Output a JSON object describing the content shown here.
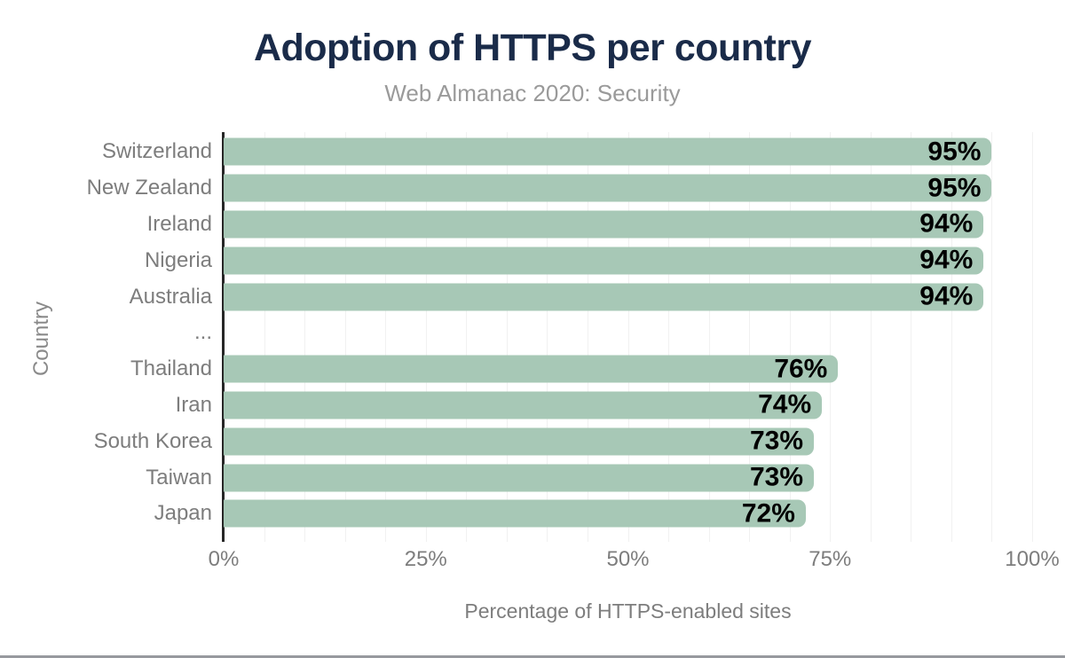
{
  "chart_data": {
    "type": "bar",
    "orientation": "horizontal",
    "title": "Adoption of HTTPS per country",
    "subtitle": "Web Almanac 2020: Security",
    "xlabel": "Percentage of HTTPS-enabled sites",
    "ylabel": "Country",
    "categories": [
      "Switzerland",
      "New Zealand",
      "Ireland",
      "Nigeria",
      "Australia",
      "...",
      "Thailand",
      "Iran",
      "South Korea",
      "Taiwan",
      "Japan"
    ],
    "values": [
      95,
      95,
      94,
      94,
      94,
      null,
      76,
      74,
      73,
      73,
      72
    ],
    "bar_labels": [
      "95%",
      "95%",
      "94%",
      "94%",
      "94%",
      "",
      "76%",
      "74%",
      "73%",
      "73%",
      "72%"
    ],
    "xlim": [
      0,
      100
    ],
    "x_ticks": [
      {
        "value": 0,
        "label": "0%"
      },
      {
        "value": 25,
        "label": "25%"
      },
      {
        "value": 50,
        "label": "50%"
      },
      {
        "value": 75,
        "label": "75%"
      },
      {
        "value": 100,
        "label": "100%"
      }
    ],
    "grid": {
      "visible": true,
      "minor_step_percent": 5
    },
    "legend": "none",
    "colors": {
      "bar": "#a7c8b6",
      "title": "#1a2b49",
      "subtitle": "#9a9a9a",
      "axis_text": "#7d7d7d",
      "value_label": "#000000",
      "axis_line": "#262626",
      "gridline": "#f1f1f1",
      "bottom_strip": "#97999e"
    }
  }
}
